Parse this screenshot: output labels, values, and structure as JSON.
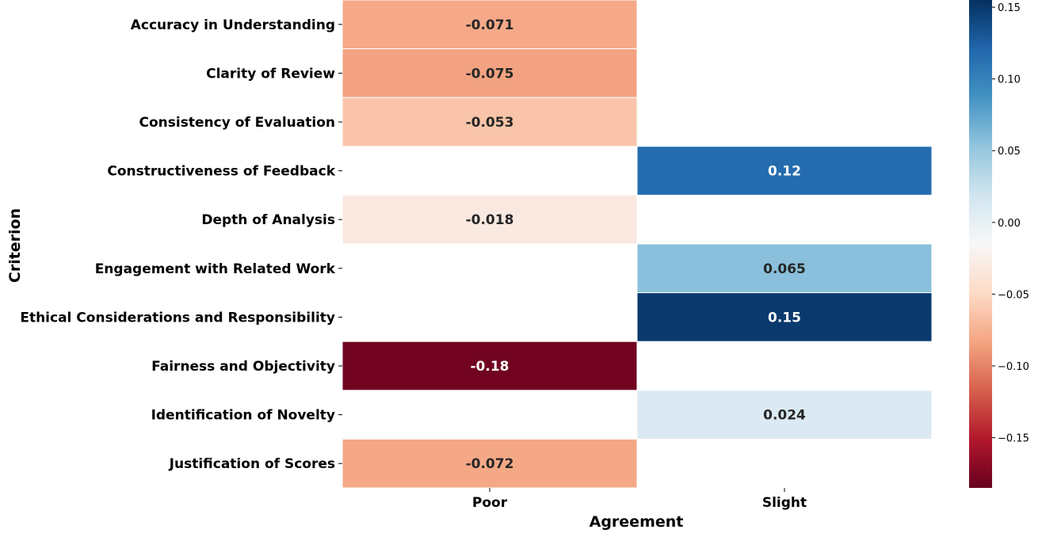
{
  "chart_data": {
    "type": "heatmap",
    "xlabel": "Agreement",
    "ylabel": "Criterion",
    "x_categories": [
      "Poor",
      "Slight"
    ],
    "y_categories": [
      "Accuracy in Understanding",
      "Clarity of Review",
      "Consistency of Evaluation",
      "Constructiveness of Feedback",
      "Depth of Analysis",
      "Engagement with Related Work",
      "Ethical Considerations and Responsibility",
      "Fairness and Objectivity",
      "Identification of Novelty",
      "Justification of Scores"
    ],
    "values": [
      [
        -0.071,
        null
      ],
      [
        -0.075,
        null
      ],
      [
        -0.053,
        null
      ],
      [
        null,
        0.12
      ],
      [
        -0.018,
        null
      ],
      [
        null,
        0.065
      ],
      [
        null,
        0.15
      ],
      [
        -0.18,
        null
      ],
      [
        null,
        0.024
      ],
      [
        -0.072,
        null
      ]
    ],
    "cell_labels": [
      [
        "-0.071",
        ""
      ],
      [
        "-0.075",
        ""
      ],
      [
        "-0.053",
        ""
      ],
      [
        "",
        "0.12"
      ],
      [
        "-0.018",
        ""
      ],
      [
        "",
        "0.065"
      ],
      [
        "",
        "0.15"
      ],
      [
        "-0.18",
        ""
      ],
      [
        "",
        "0.024"
      ],
      [
        "-0.072",
        ""
      ]
    ],
    "colormap": "RdBu",
    "color_range": [
      -0.185,
      0.155
    ],
    "colorbar_ticks": [
      "0.15",
      "0.10",
      "0.05",
      "0.00",
      "−0.05",
      "−0.10",
      "−0.15"
    ],
    "colorbar_tick_values": [
      0.15,
      0.1,
      0.05,
      0.0,
      -0.05,
      -0.1,
      -0.15
    ]
  }
}
